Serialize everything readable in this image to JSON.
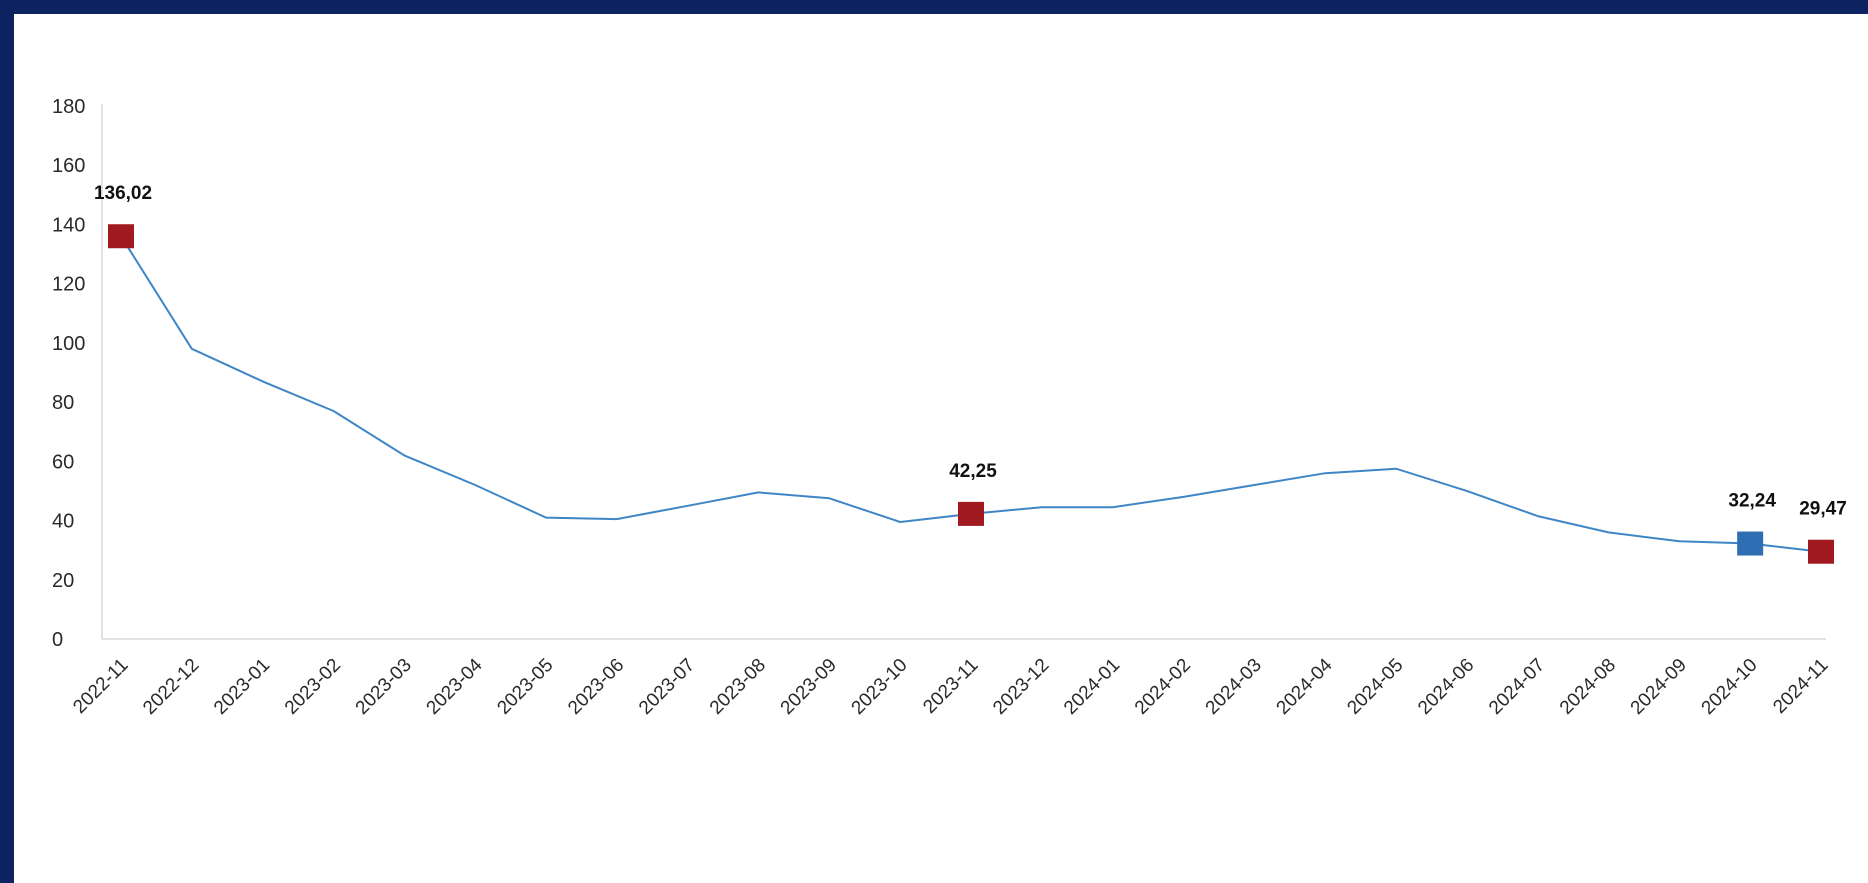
{
  "chart_data": {
    "type": "line",
    "title": "",
    "xlabel": "",
    "ylabel": "",
    "ylim": [
      0,
      180
    ],
    "yticks": [
      0,
      20,
      40,
      60,
      80,
      100,
      120,
      140,
      160,
      180
    ],
    "grid": false,
    "legend": "none",
    "categories": [
      "2022-11",
      "2022-12",
      "2023-01",
      "2023-02",
      "2023-03",
      "2023-04",
      "2023-05",
      "2023-06",
      "2023-07",
      "2023-08",
      "2023-09",
      "2023-10",
      "2023-11",
      "2023-12",
      "2024-01",
      "2024-02",
      "2024-03",
      "2024-04",
      "2024-05",
      "2024-06",
      "2024-07",
      "2024-08",
      "2024-09",
      "2024-10",
      "2024-11"
    ],
    "series": [
      {
        "values": [
          136.02,
          98,
          87,
          77,
          62,
          52,
          41,
          40.5,
          45,
          49.5,
          47.5,
          39.5,
          42.25,
          44.5,
          44.5,
          48,
          52,
          56,
          57.5,
          50,
          41.5,
          36,
          33,
          32.24,
          29.47
        ],
        "color": "#3f86c6"
      }
    ],
    "highlighted_points": [
      {
        "category": "2022-11",
        "label": "136,02",
        "color": "#a11a1f"
      },
      {
        "category": "2023-11",
        "label": "42,25",
        "color": "#a11a1f"
      },
      {
        "category": "2024-10",
        "label": "32,24",
        "color": "#2e6fb3"
      },
      {
        "category": "2024-11",
        "label": "29,47",
        "color": "#a11a1f"
      }
    ]
  }
}
